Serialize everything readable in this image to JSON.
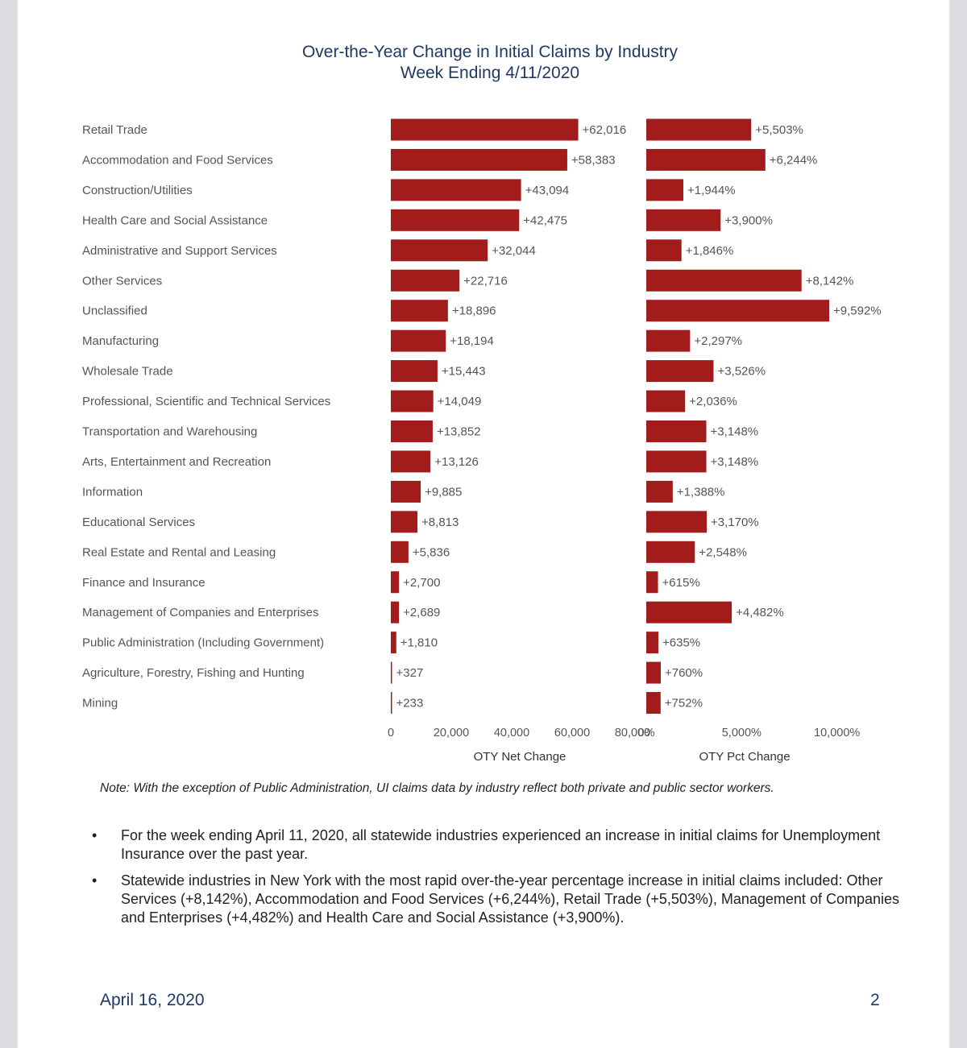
{
  "chart_data": {
    "type": "bar",
    "orientation": "horizontal",
    "title": "Over-the-Year Change in Initial Claims by Industry",
    "subtitle": "Week Ending 4/11/2020",
    "bar_color": "#a31c1c",
    "categories": [
      "Retail Trade",
      "Accommodation and Food Services",
      "Construction/Utilities",
      "Health Care and Social Assistance",
      "Administrative and Support Services",
      "Other Services",
      "Unclassified",
      "Manufacturing",
      "Wholesale Trade",
      "Professional, Scientific and Technical Services",
      "Transportation and Warehousing",
      "Arts, Entertainment and Recreation",
      "Information",
      "Educational Services",
      "Real Estate and Rental and Leasing",
      "Finance and Insurance",
      "Management of Companies and Enterprises",
      "Public Administration (Including Government)",
      "Agriculture, Forestry, Fishing and Hunting",
      "Mining"
    ],
    "panels": [
      {
        "xlabel": "OTY Net Change",
        "xlim": [
          0,
          80000
        ],
        "ticks": [
          0,
          20000,
          40000,
          60000,
          80000
        ],
        "tick_labels": [
          "0",
          "20,000",
          "40,000",
          "60,000",
          "80,000"
        ],
        "values": [
          62016,
          58383,
          43094,
          42475,
          32044,
          22716,
          18896,
          18194,
          15443,
          14049,
          13852,
          13126,
          9885,
          8813,
          5836,
          2700,
          2689,
          1810,
          327,
          233
        ],
        "labels": [
          "+62,016",
          "+58,383",
          "+43,094",
          "+42,475",
          "+32,044",
          "+22,716",
          "+18,896",
          "+18,194",
          "+15,443",
          "+14,049",
          "+13,852",
          "+13,126",
          "+9,885",
          "+8,813",
          "+5,836",
          "+2,700",
          "+2,689",
          "+1,810",
          "+327",
          "+233"
        ]
      },
      {
        "xlabel": "OTY Pct Change",
        "xlim": [
          0,
          12000
        ],
        "ticks": [
          0,
          5000,
          10000
        ],
        "tick_labels": [
          "0%",
          "5,000%",
          "10,000%"
        ],
        "values": [
          5503,
          6244,
          1944,
          3900,
          1846,
          8142,
          9592,
          2297,
          3526,
          2036,
          3148,
          3148,
          1388,
          3170,
          2548,
          615,
          4482,
          635,
          760,
          752
        ],
        "labels": [
          "+5,503%",
          "+6,244%",
          "+1,944%",
          "+3,900%",
          "+1,846%",
          "+8,142%",
          "+9,592%",
          "+2,297%",
          "+3,526%",
          "+2,036%",
          "+3,148%",
          "+3,148%",
          "+1,388%",
          "+3,170%",
          "+2,548%",
          "+615%",
          "+4,482%",
          "+635%",
          "+760%",
          "+752%"
        ]
      }
    ]
  },
  "note": "Note: With the exception of Public Administration, UI claims data by industry reflect both private and public sector workers.",
  "bullets": [
    "For the week ending April 11, 2020, all statewide industries experienced an increase in initial claims for Unemployment Insurance over the past year.",
    "Statewide industries in New York with the most rapid over-the-year percentage increase in initial claims included: Other Services (+8,142%), Accommodation and Food Services (+6,244%), Retail Trade (+5,503%), Management of Companies and Enterprises (+4,482%) and Health Care and Social Assistance (+3,900%)."
  ],
  "bullet_symbol": "•",
  "footer": {
    "date": "April 16, 2020",
    "page_number": "2"
  }
}
